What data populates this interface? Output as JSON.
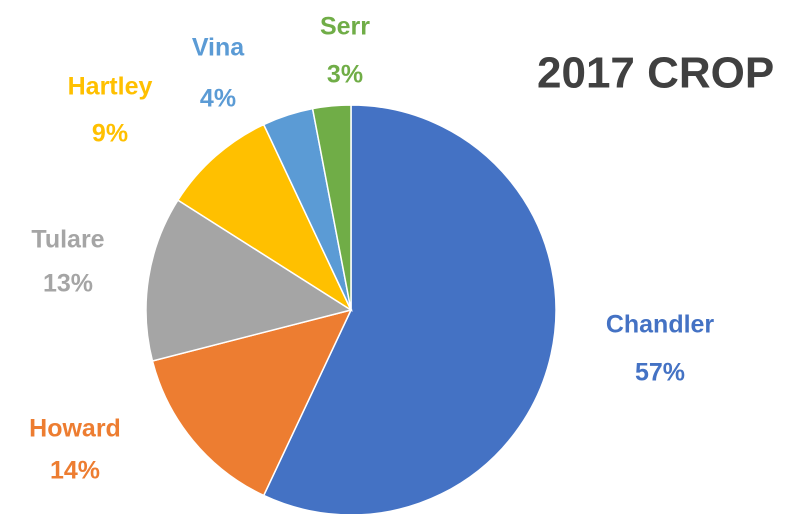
{
  "chart_data": {
    "type": "pie",
    "title": "2017 CROP",
    "categories": [
      "Chandler",
      "Howard",
      "Tulare",
      "Hartley",
      "Vina",
      "Serr"
    ],
    "values": [
      57,
      14,
      13,
      9,
      4,
      3
    ],
    "value_labels": [
      "57%",
      "14%",
      "13%",
      "9%",
      "4%",
      "3%"
    ],
    "colors": [
      "#4472c4",
      "#ed7d31",
      "#a5a5a5",
      "#ffc000",
      "#5b9bd5",
      "#70ad47"
    ]
  }
}
